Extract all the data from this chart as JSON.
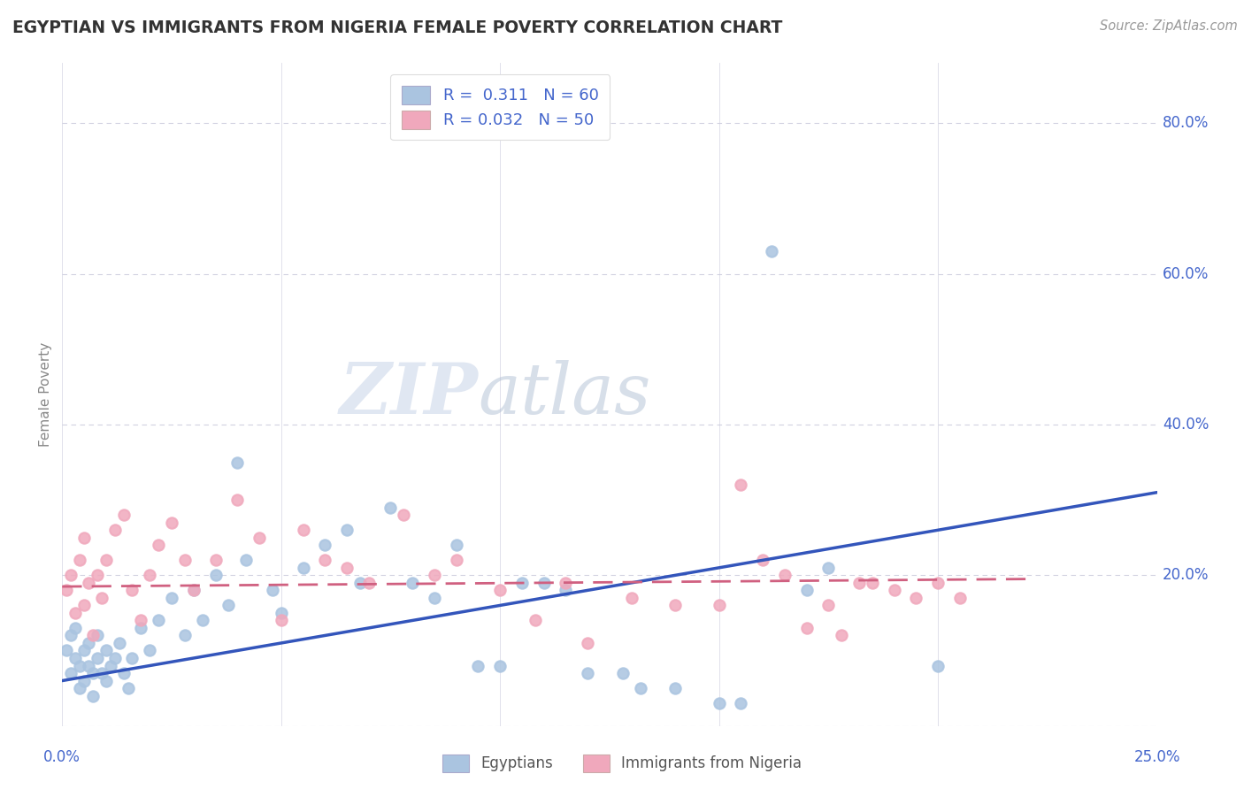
{
  "title": "EGYPTIAN VS IMMIGRANTS FROM NIGERIA FEMALE POVERTY CORRELATION CHART",
  "source": "Source: ZipAtlas.com",
  "ylabel": "Female Poverty",
  "xlim": [
    0.0,
    0.25
  ],
  "ylim": [
    0.0,
    0.88
  ],
  "ytick_vals": [
    0.0,
    0.2,
    0.4,
    0.6,
    0.8
  ],
  "yticklabels": [
    "",
    "20.0%",
    "40.0%",
    "60.0%",
    "80.0%"
  ],
  "xtick_vals": [
    0.0,
    0.05,
    0.1,
    0.15,
    0.2,
    0.25
  ],
  "xticklabels_show": [
    "0.0%",
    "25.0%"
  ],
  "legend_labels": [
    "Egyptians",
    "Immigrants from Nigeria"
  ],
  "r_egyptian": 0.311,
  "n_egyptian": 60,
  "r_nigeria": 0.032,
  "n_nigeria": 50,
  "blue_dot_color": "#aac4e0",
  "pink_dot_color": "#f0a8bc",
  "blue_line_color": "#3355bb",
  "pink_line_color": "#d06080",
  "grid_color": "#ccccdd",
  "title_color": "#333333",
  "axis_label_color": "#888888",
  "tick_label_color": "#4466cc",
  "watermark_color": "#dde4f0",
  "egyptian_x": [
    0.001,
    0.002,
    0.002,
    0.003,
    0.003,
    0.004,
    0.004,
    0.005,
    0.005,
    0.006,
    0.006,
    0.007,
    0.007,
    0.008,
    0.008,
    0.009,
    0.01,
    0.01,
    0.011,
    0.012,
    0.013,
    0.014,
    0.015,
    0.016,
    0.018,
    0.02,
    0.022,
    0.025,
    0.028,
    0.03,
    0.032,
    0.035,
    0.038,
    0.04,
    0.042,
    0.048,
    0.05,
    0.055,
    0.06,
    0.065,
    0.068,
    0.075,
    0.08,
    0.085,
    0.09,
    0.095,
    0.1,
    0.105,
    0.11,
    0.115,
    0.12,
    0.128,
    0.132,
    0.14,
    0.15,
    0.155,
    0.162,
    0.17,
    0.175,
    0.2
  ],
  "egyptian_y": [
    0.1,
    0.07,
    0.12,
    0.09,
    0.13,
    0.05,
    0.08,
    0.1,
    0.06,
    0.11,
    0.08,
    0.07,
    0.04,
    0.09,
    0.12,
    0.07,
    0.1,
    0.06,
    0.08,
    0.09,
    0.11,
    0.07,
    0.05,
    0.09,
    0.13,
    0.1,
    0.14,
    0.17,
    0.12,
    0.18,
    0.14,
    0.2,
    0.16,
    0.35,
    0.22,
    0.18,
    0.15,
    0.21,
    0.24,
    0.26,
    0.19,
    0.29,
    0.19,
    0.17,
    0.24,
    0.08,
    0.08,
    0.19,
    0.19,
    0.18,
    0.07,
    0.07,
    0.05,
    0.05,
    0.03,
    0.03,
    0.63,
    0.18,
    0.21,
    0.08
  ],
  "nigeria_x": [
    0.001,
    0.002,
    0.003,
    0.004,
    0.005,
    0.005,
    0.006,
    0.007,
    0.008,
    0.009,
    0.01,
    0.012,
    0.014,
    0.016,
    0.018,
    0.02,
    0.022,
    0.025,
    0.028,
    0.03,
    0.035,
    0.04,
    0.045,
    0.05,
    0.055,
    0.06,
    0.065,
    0.07,
    0.078,
    0.085,
    0.09,
    0.1,
    0.108,
    0.115,
    0.12,
    0.13,
    0.14,
    0.15,
    0.155,
    0.16,
    0.165,
    0.17,
    0.175,
    0.178,
    0.182,
    0.185,
    0.19,
    0.195,
    0.2,
    0.205
  ],
  "nigeria_y": [
    0.18,
    0.2,
    0.15,
    0.22,
    0.16,
    0.25,
    0.19,
    0.12,
    0.2,
    0.17,
    0.22,
    0.26,
    0.28,
    0.18,
    0.14,
    0.2,
    0.24,
    0.27,
    0.22,
    0.18,
    0.22,
    0.3,
    0.25,
    0.14,
    0.26,
    0.22,
    0.21,
    0.19,
    0.28,
    0.2,
    0.22,
    0.18,
    0.14,
    0.19,
    0.11,
    0.17,
    0.16,
    0.16,
    0.32,
    0.22,
    0.2,
    0.13,
    0.16,
    0.12,
    0.19,
    0.19,
    0.18,
    0.17,
    0.19,
    0.17
  ],
  "blue_line_x": [
    0.0,
    0.25
  ],
  "blue_line_y": [
    0.06,
    0.31
  ],
  "pink_line_x": [
    0.0,
    0.22
  ],
  "pink_line_y": [
    0.185,
    0.195
  ]
}
